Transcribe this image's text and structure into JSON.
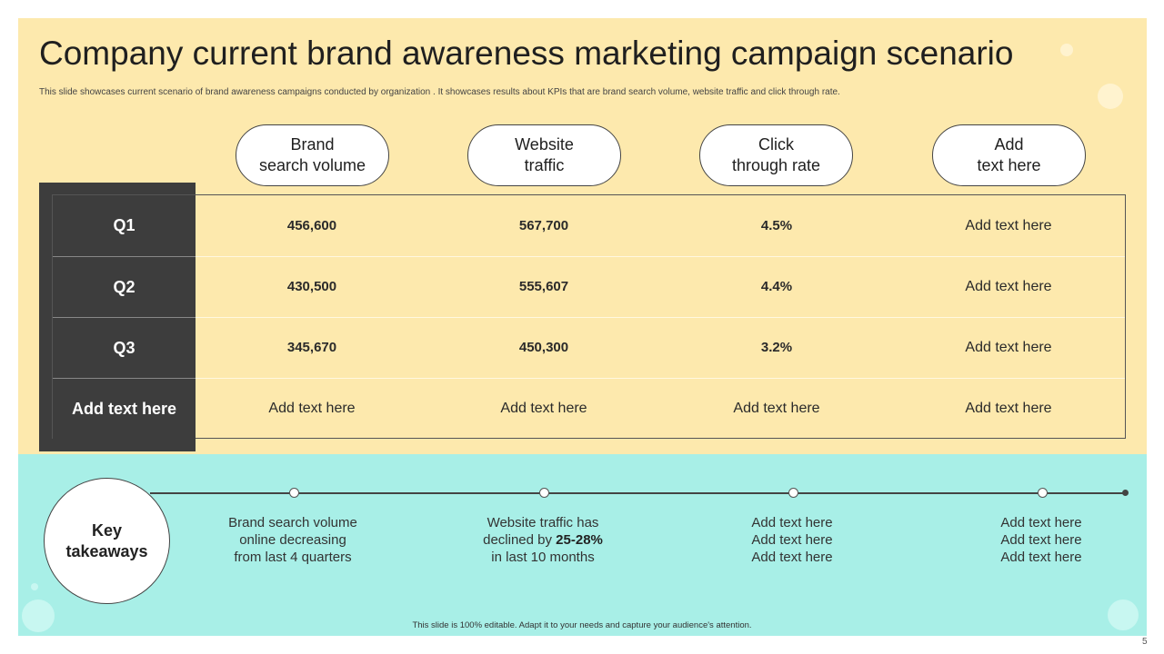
{
  "title": "Company current brand awareness marketing campaign scenario",
  "subtitle": "This slide showcases current scenario of brand awareness campaigns conducted by organization . It showcases results about KPIs that are brand search volume, website traffic and click through rate.",
  "columns": [
    {
      "line1": "Brand",
      "line2": "search volume"
    },
    {
      "line1": "Website",
      "line2": "traffic"
    },
    {
      "line1": "Click",
      "line2": "through rate"
    },
    {
      "line1": "Add",
      "line2": "text here"
    }
  ],
  "rows": [
    {
      "label": "Q1",
      "values": [
        "456,600",
        "567,700",
        "4.5%",
        "Add text here"
      ]
    },
    {
      "label": "Q2",
      "values": [
        "430,500",
        "555,607",
        "4.4%",
        "Add text here"
      ]
    },
    {
      "label": "Q3",
      "values": [
        "345,670",
        "450,300",
        "3.2%",
        "Add text here"
      ]
    },
    {
      "label": "Add text here",
      "values": [
        "Add text here",
        "Add text here",
        "Add text here",
        "Add text here"
      ]
    }
  ],
  "key_takeaways": {
    "line1": "Key",
    "line2": "takeaways"
  },
  "takeaways": [
    {
      "line1": "Brand search volume",
      "line2": "online decreasing",
      "line3": "from last 4 quarters"
    },
    {
      "line1": "Website traffic has",
      "line2a": "declined by ",
      "line2b": "25-28%",
      "line3": "in last 10 months"
    },
    {
      "line1": "Add text here",
      "line2": "Add text here",
      "line3": "Add text here"
    },
    {
      "line1": "Add text here",
      "line2": "Add text here",
      "line3": "Add text here"
    }
  ],
  "footer": "This slide is 100% editable.  Adapt it to your needs and capture your audience's attention.",
  "page_number": "5",
  "colors": {
    "top_panel": "#fde9ad",
    "bottom_panel": "#a8efe7",
    "dark": "#3d3d3d"
  }
}
